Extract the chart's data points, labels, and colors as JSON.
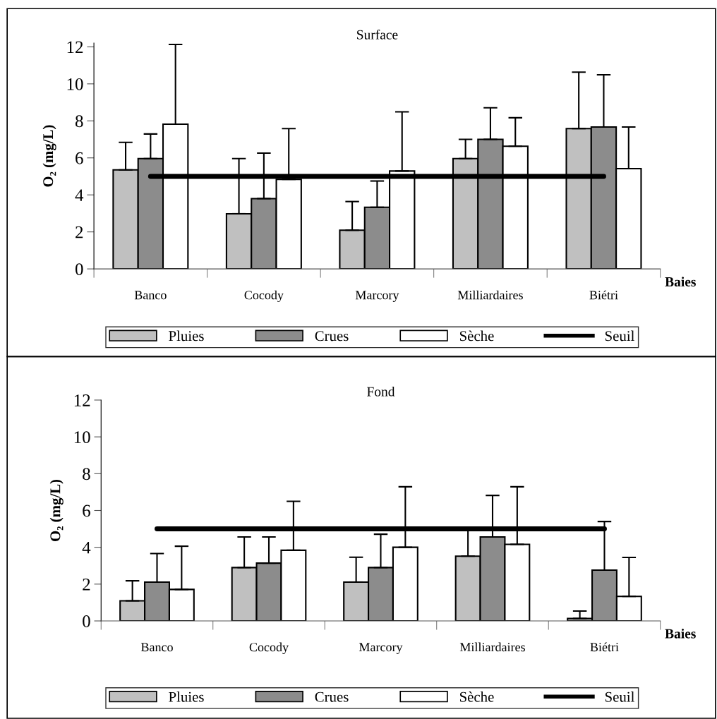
{
  "chart_data": [
    {
      "type": "bar",
      "title": "Surface",
      "xlabel": "Baies",
      "ylabel": "O₂ (mg/L)",
      "categories": [
        "Banco",
        "Cocody",
        "Marcory",
        "Milliardaires",
        "Biétri"
      ],
      "ylim": [
        0,
        12.2
      ],
      "yticks": [
        0,
        2,
        4,
        6,
        8,
        10,
        12
      ],
      "grid": false,
      "legend": "bottom",
      "series": [
        {
          "name": "Pluies",
          "color": "#c0c0c0",
          "values": [
            5.35,
            2.98,
            2.09,
            5.96,
            7.58
          ],
          "errors": [
            [
              5.35,
              6.84
            ],
            [
              2.98,
              5.96
            ],
            [
              2.09,
              3.64
            ],
            [
              5.96,
              7.0
            ],
            [
              7.58,
              10.63
            ]
          ]
        },
        {
          "name": "Crues",
          "color": "#8c8c8c",
          "values": [
            5.96,
            3.8,
            3.33,
            7.0,
            7.67
          ],
          "errors": [
            [
              5.96,
              7.29
            ],
            [
              3.8,
              6.26
            ],
            [
              3.33,
              4.75
            ],
            [
              7.0,
              8.71
            ],
            [
              7.67,
              10.49
            ]
          ]
        },
        {
          "name": "Sèche",
          "color": "#ffffff",
          "values": [
            7.82,
            4.84,
            5.29,
            6.63,
            5.42
          ],
          "errors": [
            [
              7.82,
              12.13
            ],
            [
              4.84,
              7.58
            ],
            [
              5.29,
              8.49
            ],
            [
              6.63,
              8.17
            ],
            [
              5.42,
              7.67
            ]
          ]
        },
        {
          "name": "Seuil",
          "type": "line",
          "color": "#000000",
          "values": [
            5,
            5,
            5,
            5,
            5
          ]
        }
      ]
    },
    {
      "type": "bar",
      "title": "Fond",
      "xlabel": "Baies",
      "ylabel": "O₂ (mg/L)",
      "categories": [
        "Banco",
        "Cocody",
        "Marcory",
        "Milliardaires",
        "Biétri"
      ],
      "ylim": [
        0,
        12
      ],
      "yticks": [
        0,
        2,
        4,
        6,
        8,
        10,
        12
      ],
      "grid": false,
      "legend": "bottom",
      "series": [
        {
          "name": "Pluies",
          "color": "#c0c0c0",
          "values": [
            1.09,
            2.9,
            2.11,
            3.52,
            0.13
          ],
          "errors": [
            [
              1.09,
              2.18
            ],
            [
              2.9,
              4.56
            ],
            [
              2.11,
              3.46
            ],
            [
              3.52,
              4.98
            ],
            [
              0.13,
              0.54
            ]
          ]
        },
        {
          "name": "Crues",
          "color": "#8c8c8c",
          "values": [
            2.11,
            3.14,
            2.9,
            4.56,
            2.76
          ],
          "errors": [
            [
              2.11,
              3.66
            ],
            [
              3.14,
              4.56
            ],
            [
              2.9,
              4.71
            ],
            [
              4.56,
              6.82
            ],
            [
              2.76,
              5.4
            ]
          ]
        },
        {
          "name": "Sèche",
          "color": "#ffffff",
          "values": [
            1.71,
            3.84,
            4.0,
            4.16,
            1.33
          ],
          "errors": [
            [
              1.71,
              4.06
            ],
            [
              3.84,
              6.5
            ],
            [
              4.0,
              7.29
            ],
            [
              4.16,
              7.29
            ],
            [
              1.33,
              3.45
            ]
          ]
        },
        {
          "name": "Seuil",
          "type": "line",
          "color": "#000000",
          "values": [
            5,
            5,
            5,
            5,
            5
          ]
        }
      ]
    }
  ]
}
